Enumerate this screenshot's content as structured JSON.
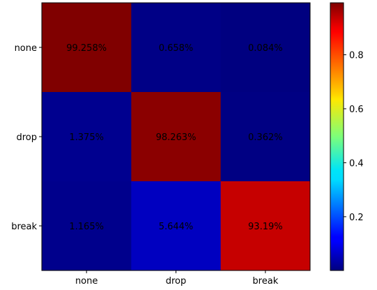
{
  "chart_data": {
    "type": "heatmap",
    "x_categories": [
      "none",
      "drop",
      "break"
    ],
    "y_categories": [
      "none",
      "drop",
      "break"
    ],
    "values": [
      [
        0.99258,
        0.00658,
        0.00084
      ],
      [
        0.01375,
        0.98263,
        0.00362
      ],
      [
        0.01165,
        0.05644,
        0.9319
      ]
    ],
    "cell_labels": [
      [
        "99.258%",
        "0.658%",
        "0.084%"
      ],
      [
        "1.375%",
        "98.263%",
        "0.362%"
      ],
      [
        "1.165%",
        "5.644%",
        "93.19%"
      ]
    ],
    "colormap": "jet",
    "colorbar": {
      "range": [
        0.00084,
        0.99258
      ],
      "ticks": [
        0.2,
        0.4,
        0.6,
        0.8
      ],
      "tick_labels": [
        "0.2",
        "0.4",
        "0.6",
        "0.8"
      ]
    },
    "grid": false,
    "legend": "colorbar-right"
  }
}
